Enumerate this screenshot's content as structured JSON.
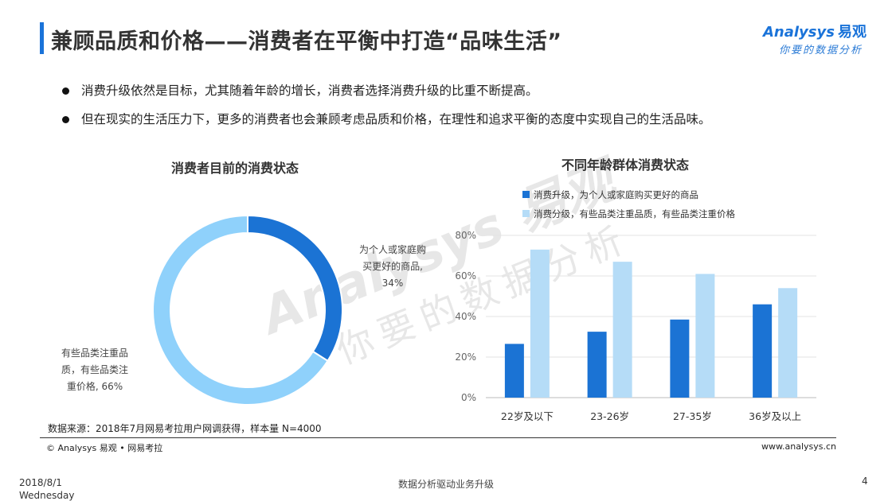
{
  "header": {
    "title": "兼顾品质和价格——消费者在平衡中打造“品味生活”",
    "logo_en": "Analysys",
    "logo_cn": "易观",
    "logo_tagline": "你要的数据分析"
  },
  "bullets": [
    "消费升级依然是目标，尤其随着年龄的增长，消费者选择消费升级的比重不断提高。",
    "但在现实的生活压力下，更多的消费者也会兼顾考虑品质和价格，在理性和追求平衡的态度中实现自己的生活品味。"
  ],
  "chart_data": [
    {
      "type": "pie",
      "title": "消费者目前的消费状态",
      "slices": [
        {
          "label_lines": [
            "为个人或家庭购",
            "买更好的商品,",
            "34%"
          ],
          "value": 34,
          "color": "#1b73d4"
        },
        {
          "label_lines": [
            "有些品类注重品",
            "质，有些品类注",
            "重价格, 66%"
          ],
          "value": 66,
          "color": "#8fd1fb"
        }
      ]
    },
    {
      "type": "bar",
      "title": "不同年龄群体消费状态",
      "categories": [
        "22岁及以下",
        "23-26岁",
        "27-35岁",
        "36岁及以上"
      ],
      "series": [
        {
          "name": "消费升级，为个人或家庭购买更好的商品",
          "values": [
            26.5,
            32.5,
            38.5,
            46
          ],
          "color": "#1b73d4"
        },
        {
          "name": "消费分级，有些品类注重品质，有些品类注重价格",
          "values": [
            73,
            67,
            61,
            54
          ],
          "color": "#b5dcf7"
        }
      ],
      "ylim": [
        0,
        80
      ],
      "yticks": [
        "0%",
        "20%",
        "40%",
        "60%",
        "80%"
      ],
      "grid": true,
      "legend": "top-left"
    }
  ],
  "footer": {
    "source": "数据来源：2018年7月网易考拉用户网调获得，样本量 N=4000",
    "copyright": "© Analysys 易观 • 网易考拉",
    "website": "www.analysys.cn",
    "date": "2018/8/1",
    "weekday": "Wednesday",
    "center": "数据分析驱动业务升级",
    "page": "4"
  }
}
